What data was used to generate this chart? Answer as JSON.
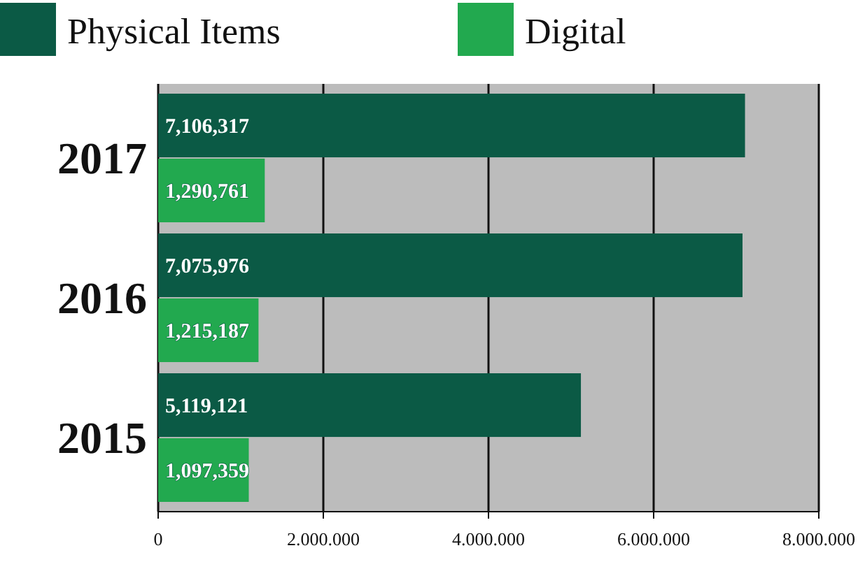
{
  "chart_data": {
    "type": "bar",
    "orientation": "horizontal",
    "categories": [
      "2017",
      "2016",
      "2015"
    ],
    "series": [
      {
        "name": "Physical Items",
        "color": "#0b5a45",
        "values": [
          7106317,
          7075976,
          5119121
        ],
        "value_labels": [
          "7,106,317",
          "7,075,976",
          "5,119,121"
        ]
      },
      {
        "name": "Digital",
        "color": "#22a94f",
        "values": [
          1290761,
          1215187,
          1097359
        ],
        "value_labels": [
          "1,290,761",
          "1,215,187",
          "1,097,359"
        ]
      }
    ],
    "xlim": [
      0,
      8000000
    ],
    "xticks": [
      0,
      {
        "value": 2000000,
        "label": "2.000.000"
      },
      {
        "value": 4000000,
        "label": "4.000.000"
      },
      {
        "value": 6000000,
        "label": "6.000.000"
      },
      {
        "value": 8000000,
        "label": "8.000.000"
      }
    ],
    "grid": "x",
    "legend": "top left"
  }
}
